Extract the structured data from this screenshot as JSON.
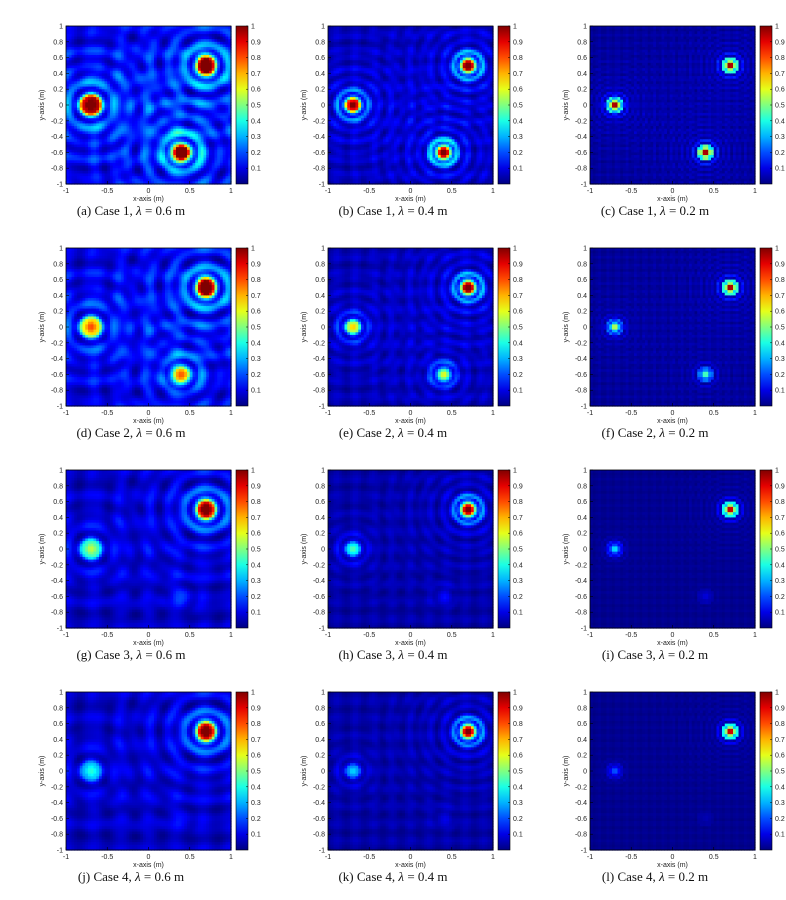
{
  "figure": {
    "colormap": "jet",
    "panels_per_row": 3,
    "rows": 4
  },
  "chart_data": [
    {
      "type": "heatmap",
      "id": "a",
      "caption_label": "(a)",
      "case": "Case 1",
      "lambda_value": "0.6",
      "unit": "m",
      "xlabel": "x-axis (m)",
      "ylabel": "y-axis (m)",
      "xlim": [
        -1,
        1
      ],
      "ylim": [
        -1,
        1
      ],
      "xticks": [
        "-1",
        "-0.5",
        "0",
        "0.5",
        "1"
      ],
      "yticks": [
        "1",
        "0.8",
        "0.6",
        "0.4",
        "0.2",
        "0",
        "-0.2",
        "-0.4",
        "-0.6",
        "-0.8",
        "-1"
      ],
      "colorbar_ticks": [
        "1",
        "0.9",
        "0.8",
        "0.7",
        "0.6",
        "0.5",
        "0.4",
        "0.3",
        "0.2",
        "0.1"
      ],
      "colorbar_range": [
        0,
        1
      ],
      "sources": [
        {
          "x": -0.7,
          "y": 0.0,
          "amp": 1.0
        },
        {
          "x": 0.7,
          "y": 0.5,
          "amp": 1.0
        },
        {
          "x": 0.4,
          "y": -0.6,
          "amp": 1.0
        }
      ],
      "background_level": 0.25
    },
    {
      "type": "heatmap",
      "id": "b",
      "caption_label": "(b)",
      "case": "Case 1",
      "lambda_value": "0.4",
      "unit": "m",
      "xlabel": "x-axis (m)",
      "ylabel": "y-axis (m)",
      "xlim": [
        -1,
        1
      ],
      "ylim": [
        -1,
        1
      ],
      "xticks": [
        "-1",
        "-0.5",
        "0",
        "0.5",
        "1"
      ],
      "yticks": [
        "1",
        "0.8",
        "0.6",
        "0.4",
        "0.2",
        "0",
        "-0.2",
        "-0.4",
        "-0.6",
        "-0.8",
        "-1"
      ],
      "colorbar_ticks": [
        "1",
        "0.9",
        "0.8",
        "0.7",
        "0.6",
        "0.5",
        "0.4",
        "0.3",
        "0.2",
        "0.1"
      ],
      "colorbar_range": [
        0,
        1
      ],
      "sources": [
        {
          "x": -0.7,
          "y": 0.0,
          "amp": 1.0
        },
        {
          "x": 0.7,
          "y": 0.5,
          "amp": 1.0
        },
        {
          "x": 0.4,
          "y": -0.6,
          "amp": 1.0
        }
      ],
      "background_level": 0.15
    },
    {
      "type": "heatmap",
      "id": "c",
      "caption_label": "(c)",
      "case": "Case 1",
      "lambda_value": "0.2",
      "unit": "m",
      "xlabel": "x-axis (m)",
      "ylabel": "y-axis (m)",
      "xlim": [
        -1,
        1
      ],
      "ylim": [
        -1,
        1
      ],
      "xticks": [
        "-1",
        "-0.5",
        "0",
        "0.5",
        "1"
      ],
      "yticks": [
        "1",
        "0.8",
        "0.6",
        "0.4",
        "0.2",
        "0",
        "-0.2",
        "-0.4",
        "-0.6",
        "-0.8",
        "-1"
      ],
      "colorbar_ticks": [
        "1",
        "0.9",
        "0.8",
        "0.7",
        "0.6",
        "0.5",
        "0.4",
        "0.3",
        "0.2",
        "0.1"
      ],
      "colorbar_range": [
        0,
        1
      ],
      "sources": [
        {
          "x": -0.7,
          "y": 0.0,
          "amp": 1.0
        },
        {
          "x": 0.7,
          "y": 0.5,
          "amp": 1.0
        },
        {
          "x": 0.4,
          "y": -0.6,
          "amp": 1.0
        }
      ],
      "background_level": 0.08
    },
    {
      "type": "heatmap",
      "id": "d",
      "caption_label": "(d)",
      "case": "Case 2",
      "lambda_value": "0.6",
      "unit": "m",
      "xlabel": "x-axis (m)",
      "ylabel": "y-axis (m)",
      "xlim": [
        -1,
        1
      ],
      "ylim": [
        -1,
        1
      ],
      "xticks": [
        "-1",
        "-0.5",
        "0",
        "0.5",
        "1"
      ],
      "yticks": [
        "1",
        "0.8",
        "0.6",
        "0.4",
        "0.2",
        "0",
        "-0.2",
        "-0.4",
        "-0.6",
        "-0.8",
        "-1"
      ],
      "colorbar_ticks": [
        "1",
        "0.9",
        "0.8",
        "0.7",
        "0.6",
        "0.5",
        "0.4",
        "0.3",
        "0.2",
        "0.1"
      ],
      "colorbar_range": [
        0,
        1
      ],
      "sources": [
        {
          "x": -0.7,
          "y": 0.0,
          "amp": 0.65
        },
        {
          "x": 0.7,
          "y": 0.5,
          "amp": 1.0
        },
        {
          "x": 0.4,
          "y": -0.6,
          "amp": 0.6
        }
      ],
      "background_level": 0.25
    },
    {
      "type": "heatmap",
      "id": "e",
      "caption_label": "(e)",
      "case": "Case 2",
      "lambda_value": "0.4",
      "unit": "m",
      "xlabel": "x-axis (m)",
      "ylabel": "y-axis (m)",
      "xlim": [
        -1,
        1
      ],
      "ylim": [
        -1,
        1
      ],
      "xticks": [
        "-1",
        "-0.5",
        "0",
        "0.5",
        "1"
      ],
      "yticks": [
        "1",
        "0.8",
        "0.6",
        "0.4",
        "0.2",
        "0",
        "-0.2",
        "-0.4",
        "-0.6",
        "-0.8",
        "-1"
      ],
      "colorbar_ticks": [
        "1",
        "0.9",
        "0.8",
        "0.7",
        "0.6",
        "0.5",
        "0.4",
        "0.3",
        "0.2",
        "0.1"
      ],
      "colorbar_range": [
        0,
        1
      ],
      "sources": [
        {
          "x": -0.7,
          "y": 0.0,
          "amp": 0.6
        },
        {
          "x": 0.7,
          "y": 0.5,
          "amp": 1.0
        },
        {
          "x": 0.4,
          "y": -0.6,
          "amp": 0.5
        }
      ],
      "background_level": 0.15
    },
    {
      "type": "heatmap",
      "id": "f",
      "caption_label": "(f)",
      "case": "Case 2",
      "lambda_value": "0.2",
      "unit": "m",
      "xlabel": "x-axis (m)",
      "ylabel": "y-axis (m)",
      "xlim": [
        -1,
        1
      ],
      "ylim": [
        -1,
        1
      ],
      "xticks": [
        "-1",
        "-0.5",
        "0",
        "0.5",
        "1"
      ],
      "yticks": [
        "1",
        "0.8",
        "0.6",
        "0.4",
        "0.2",
        "0",
        "-0.2",
        "-0.4",
        "-0.6",
        "-0.8",
        "-1"
      ],
      "colorbar_ticks": [
        "1",
        "0.9",
        "0.8",
        "0.7",
        "0.6",
        "0.5",
        "0.4",
        "0.3",
        "0.2",
        "0.1"
      ],
      "colorbar_range": [
        0,
        1
      ],
      "sources": [
        {
          "x": -0.7,
          "y": 0.0,
          "amp": 0.55
        },
        {
          "x": 0.7,
          "y": 0.5,
          "amp": 1.0
        },
        {
          "x": 0.4,
          "y": -0.6,
          "amp": 0.45
        }
      ],
      "background_level": 0.08
    },
    {
      "type": "heatmap",
      "id": "g",
      "caption_label": "(g)",
      "case": "Case 3",
      "lambda_value": "0.6",
      "unit": "m",
      "xlabel": "x-axis (m)",
      "ylabel": "y-axis (m)",
      "xlim": [
        -1,
        1
      ],
      "ylim": [
        -1,
        1
      ],
      "xticks": [
        "-1",
        "-0.5",
        "0",
        "0.5",
        "1"
      ],
      "yticks": [
        "1",
        "0.8",
        "0.6",
        "0.4",
        "0.2",
        "0",
        "-0.2",
        "-0.4",
        "-0.6",
        "-0.8",
        "-1"
      ],
      "colorbar_ticks": [
        "1",
        "0.9",
        "0.8",
        "0.7",
        "0.6",
        "0.5",
        "0.4",
        "0.3",
        "0.2",
        "0.1"
      ],
      "colorbar_range": [
        0,
        1
      ],
      "sources": [
        {
          "x": -0.7,
          "y": 0.0,
          "amp": 0.45
        },
        {
          "x": 0.7,
          "y": 0.5,
          "amp": 1.0
        },
        {
          "x": 0.4,
          "y": -0.6,
          "amp": 0.1
        }
      ],
      "background_level": 0.2
    },
    {
      "type": "heatmap",
      "id": "h",
      "caption_label": "(h)",
      "case": "Case 3",
      "lambda_value": "0.4",
      "unit": "m",
      "xlabel": "x-axis (m)",
      "ylabel": "y-axis (m)",
      "xlim": [
        -1,
        1
      ],
      "ylim": [
        -1,
        1
      ],
      "xticks": [
        "-1",
        "-0.5",
        "0",
        "0.5",
        "1"
      ],
      "yticks": [
        "1",
        "0.8",
        "0.6",
        "0.4",
        "0.2",
        "0",
        "-0.2",
        "-0.4",
        "-0.6",
        "-0.8",
        "-1"
      ],
      "colorbar_ticks": [
        "1",
        "0.9",
        "0.8",
        "0.7",
        "0.6",
        "0.5",
        "0.4",
        "0.3",
        "0.2",
        "0.1"
      ],
      "colorbar_range": [
        0,
        1
      ],
      "sources": [
        {
          "x": -0.7,
          "y": 0.0,
          "amp": 0.4
        },
        {
          "x": 0.7,
          "y": 0.5,
          "amp": 1.0
        },
        {
          "x": 0.4,
          "y": -0.6,
          "amp": 0.08
        }
      ],
      "background_level": 0.12
    },
    {
      "type": "heatmap",
      "id": "i",
      "caption_label": "(i)",
      "case": "Case 3",
      "lambda_value": "0.2",
      "unit": "m",
      "xlabel": "x-axis (m)",
      "ylabel": "y-axis (m)",
      "xlim": [
        -1,
        1
      ],
      "ylim": [
        -1,
        1
      ],
      "xticks": [
        "-1",
        "-0.5",
        "0",
        "0.5",
        "1"
      ],
      "yticks": [
        "1",
        "0.8",
        "0.6",
        "0.4",
        "0.2",
        "0",
        "-0.2",
        "-0.4",
        "-0.6",
        "-0.8",
        "-1"
      ],
      "colorbar_ticks": [
        "1",
        "0.9",
        "0.8",
        "0.7",
        "0.6",
        "0.5",
        "0.4",
        "0.3",
        "0.2",
        "0.1"
      ],
      "colorbar_range": [
        0,
        1
      ],
      "sources": [
        {
          "x": -0.7,
          "y": 0.0,
          "amp": 0.35
        },
        {
          "x": 0.7,
          "y": 0.5,
          "amp": 1.0
        },
        {
          "x": 0.4,
          "y": -0.6,
          "amp": 0.08
        }
      ],
      "background_level": 0.05
    },
    {
      "type": "heatmap",
      "id": "j",
      "caption_label": "(j)",
      "case": "Case 4",
      "lambda_value": "0.6",
      "unit": "m",
      "xlabel": "x-axis (m)",
      "ylabel": "y-axis (m)",
      "xlim": [
        -1,
        1
      ],
      "ylim": [
        -1,
        1
      ],
      "xticks": [
        "-1",
        "-0.5",
        "0",
        "0.5",
        "1"
      ],
      "yticks": [
        "1",
        "0.8",
        "0.6",
        "0.4",
        "0.2",
        "0",
        "-0.2",
        "-0.4",
        "-0.6",
        "-0.8",
        "-1"
      ],
      "colorbar_ticks": [
        "1",
        "0.9",
        "0.8",
        "0.7",
        "0.6",
        "0.5",
        "0.4",
        "0.3",
        "0.2",
        "0.1"
      ],
      "colorbar_range": [
        0,
        1
      ],
      "sources": [
        {
          "x": -0.7,
          "y": 0.0,
          "amp": 0.3
        },
        {
          "x": 0.7,
          "y": 0.5,
          "amp": 1.0
        },
        {
          "x": 0.4,
          "y": -0.6,
          "amp": 0.05
        }
      ],
      "background_level": 0.2
    },
    {
      "type": "heatmap",
      "id": "k",
      "caption_label": "(k)",
      "case": "Case 4",
      "lambda_value": "0.4",
      "unit": "m",
      "xlabel": "x-axis (m)",
      "ylabel": "y-axis (m)",
      "xlim": [
        -1,
        1
      ],
      "ylim": [
        -1,
        1
      ],
      "xticks": [
        "-1",
        "-0.5",
        "0",
        "0.5",
        "1"
      ],
      "yticks": [
        "1",
        "0.8",
        "0.6",
        "0.4",
        "0.2",
        "0",
        "-0.2",
        "-0.4",
        "-0.6",
        "-0.8",
        "-1"
      ],
      "colorbar_ticks": [
        "1",
        "0.9",
        "0.8",
        "0.7",
        "0.6",
        "0.5",
        "0.4",
        "0.3",
        "0.2",
        "0.1"
      ],
      "colorbar_range": [
        0,
        1
      ],
      "sources": [
        {
          "x": -0.7,
          "y": 0.0,
          "amp": 0.28
        },
        {
          "x": 0.7,
          "y": 0.5,
          "amp": 1.0
        },
        {
          "x": 0.4,
          "y": -0.6,
          "amp": 0.05
        }
      ],
      "background_level": 0.12
    },
    {
      "type": "heatmap",
      "id": "l",
      "caption_label": "(l)",
      "case": "Case 4",
      "lambda_value": "0.2",
      "unit": "m",
      "xlabel": "x-axis (m)",
      "ylabel": "y-axis (m)",
      "xlim": [
        -1,
        1
      ],
      "ylim": [
        -1,
        1
      ],
      "xticks": [
        "-1",
        "-0.5",
        "0",
        "0.5",
        "1"
      ],
      "yticks": [
        "1",
        "0.8",
        "0.6",
        "0.4",
        "0.2",
        "0",
        "-0.2",
        "-0.4",
        "-0.6",
        "-0.8",
        "-1"
      ],
      "colorbar_ticks": [
        "1",
        "0.9",
        "0.8",
        "0.7",
        "0.6",
        "0.5",
        "0.4",
        "0.3",
        "0.2",
        "0.1"
      ],
      "colorbar_range": [
        0,
        1
      ],
      "sources": [
        {
          "x": -0.7,
          "y": 0.0,
          "amp": 0.2
        },
        {
          "x": 0.7,
          "y": 0.5,
          "amp": 1.0
        },
        {
          "x": 0.4,
          "y": -0.6,
          "amp": 0.04
        }
      ],
      "background_level": 0.05
    }
  ]
}
